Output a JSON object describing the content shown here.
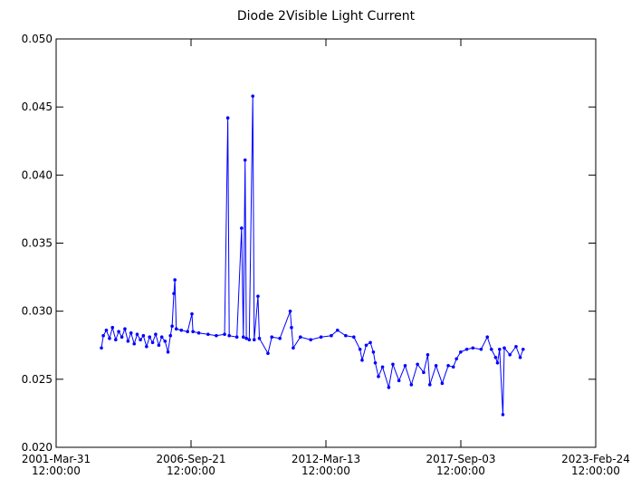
{
  "chart_data": {
    "type": "line",
    "title": "Diode 2Visible Light Current",
    "x": [
      "2003-02-01",
      "2003-03-01",
      "2003-04-15",
      "2003-06-01",
      "2003-07-15",
      "2003-09-01",
      "2003-10-15",
      "2003-12-01",
      "2004-01-15",
      "2004-03-01",
      "2004-04-15",
      "2004-06-01",
      "2004-07-15",
      "2004-09-01",
      "2004-10-15",
      "2004-12-01",
      "2005-01-15",
      "2005-03-01",
      "2005-04-15",
      "2005-06-01",
      "2005-07-15",
      "2005-09-01",
      "2005-10-15",
      "2005-11-20",
      "2005-12-15",
      "2006-01-10",
      "2006-01-25",
      "2006-02-15",
      "2006-05-01",
      "2006-08-01",
      "2006-10-05",
      "2006-10-20",
      "2007-01-15",
      "2007-06-01",
      "2007-10-01",
      "2008-02-01",
      "2008-03-20",
      "2008-04-10",
      "2008-08-01",
      "2008-10-10",
      "2008-11-05",
      "2008-12-01",
      "2008-12-20",
      "2009-02-01",
      "2009-03-25",
      "2009-04-15",
      "2009-06-10",
      "2009-07-01",
      "2009-11-05",
      "2010-01-01",
      "2010-05-01",
      "2010-10-01",
      "2010-10-20",
      "2010-11-15",
      "2011-03-01",
      "2011-08-01",
      "2012-01-01",
      "2012-06-01",
      "2012-09-01",
      "2013-01-01",
      "2013-05-01",
      "2013-08-01",
      "2013-09-01",
      "2013-11-01",
      "2014-01-01",
      "2014-02-15",
      "2014-03-15",
      "2014-05-01",
      "2014-07-01",
      "2014-10-01",
      "2014-12-01",
      "2015-03-01",
      "2015-06-01",
      "2015-09-01",
      "2015-12-01",
      "2016-03-01",
      "2016-05-01",
      "2016-06-01",
      "2016-09-01",
      "2016-12-01",
      "2017-03-01",
      "2017-05-15",
      "2017-07-01",
      "2017-09-01",
      "2017-12-01",
      "2018-03-01",
      "2018-07-01",
      "2018-10-01",
      "2018-12-01",
      "2019-02-01",
      "2019-03-01",
      "2019-04-01",
      "2019-05-20",
      "2019-06-10",
      "2019-09-01",
      "2019-12-01",
      "2020-02-01",
      "2020-03-15"
    ],
    "series": [
      {
        "color": "#0000ff",
        "values": [
          0.0273,
          0.0282,
          0.0286,
          0.028,
          0.0288,
          0.0279,
          0.0285,
          0.0281,
          0.0287,
          0.0278,
          0.0284,
          0.0276,
          0.0283,
          0.0279,
          0.0282,
          0.0274,
          0.0281,
          0.0277,
          0.0283,
          0.0275,
          0.0281,
          0.0278,
          0.027,
          0.0282,
          0.0289,
          0.0313,
          0.0323,
          0.0287,
          0.0286,
          0.0285,
          0.0298,
          0.0285,
          0.0284,
          0.0283,
          0.0282,
          0.0283,
          0.0442,
          0.0282,
          0.0281,
          0.0361,
          0.0281,
          0.0411,
          0.028,
          0.0279,
          0.0458,
          0.0279,
          0.0311,
          0.028,
          0.0269,
          0.0281,
          0.028,
          0.03,
          0.0288,
          0.0273,
          0.0281,
          0.0279,
          0.0281,
          0.0282,
          0.0286,
          0.0282,
          0.0281,
          0.0272,
          0.0264,
          0.0275,
          0.0277,
          0.027,
          0.0262,
          0.0252,
          0.0259,
          0.0244,
          0.0261,
          0.0249,
          0.026,
          0.0246,
          0.0261,
          0.0255,
          0.0268,
          0.0246,
          0.026,
          0.0247,
          0.026,
          0.0259,
          0.0265,
          0.027,
          0.0272,
          0.0273,
          0.0272,
          0.0281,
          0.0272,
          0.0266,
          0.0262,
          0.0272,
          0.0224,
          0.0273,
          0.0268,
          0.0274,
          0.0266,
          0.0272
        ]
      }
    ],
    "xlim": [
      "2001-03-31T12:00:00",
      "2023-02-24T12:00:00"
    ],
    "xticks": [
      {
        "value": "2001-03-31T12:00:00",
        "label": [
          "2001-Mar-31",
          "12:00:00"
        ]
      },
      {
        "value": "2006-09-21T12:00:00",
        "label": [
          "2006-Sep-21",
          "12:00:00"
        ]
      },
      {
        "value": "2012-03-13T12:00:00",
        "label": [
          "2012-Mar-13",
          "12:00:00"
        ]
      },
      {
        "value": "2017-09-03T12:00:00",
        "label": [
          "2017-Sep-03",
          "12:00:00"
        ]
      },
      {
        "value": "2023-02-24T12:00:00",
        "label": [
          "2023-Feb-24",
          "12:00:00"
        ]
      }
    ],
    "ylim": [
      0.02,
      0.05
    ],
    "yticks": [
      {
        "value": 0.02,
        "label": "0.020"
      },
      {
        "value": 0.025,
        "label": "0.025"
      },
      {
        "value": 0.03,
        "label": "0.030"
      },
      {
        "value": 0.035,
        "label": "0.035"
      },
      {
        "value": 0.04,
        "label": "0.040"
      },
      {
        "value": 0.045,
        "label": "0.045"
      },
      {
        "value": 0.05,
        "label": "0.050"
      }
    ]
  }
}
